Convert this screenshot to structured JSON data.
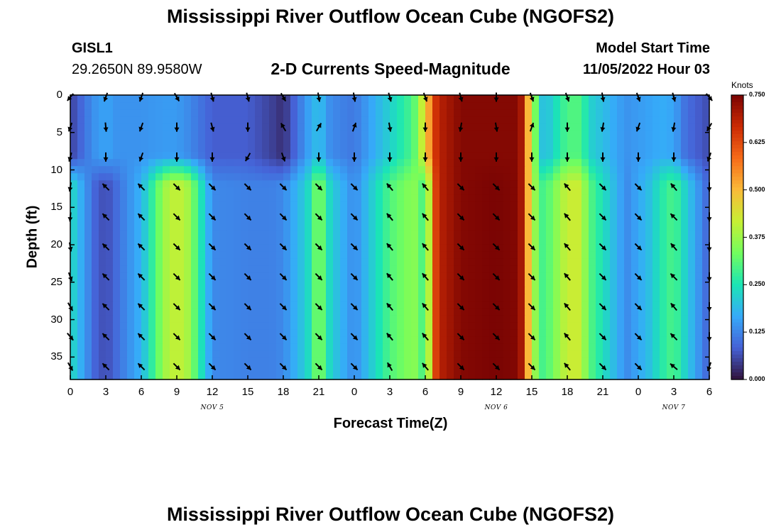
{
  "page": {
    "title_top": "Mississippi River Outflow Ocean Cube (NGOFS2)",
    "title_bottom": "Mississippi River Outflow Ocean Cube (NGOFS2)",
    "station_id": "GISL1",
    "station_coords": "29.2650N  89.9580W",
    "model_start_label": "Model Start Time",
    "model_start_value": "11/05/2022 Hour 03"
  },
  "chart_data": {
    "type": "heatmap",
    "title": "2-D Currents Speed-Magnitude",
    "xlabel": "Forecast Time(Z)",
    "ylabel": "Depth (ft)",
    "x_hours_range": [
      0,
      54
    ],
    "ylim": [
      0,
      38
    ],
    "y_reversed": true,
    "x_tick_hours": [
      0,
      3,
      6,
      9,
      12,
      15,
      18,
      21,
      24,
      27,
      30,
      33,
      36,
      39,
      42,
      45,
      48,
      51,
      54
    ],
    "x_tick_labels": [
      "0",
      "3",
      "6",
      "9",
      "12",
      "15",
      "18",
      "21",
      "0",
      "3",
      "6",
      "9",
      "12",
      "15",
      "18",
      "21",
      "0",
      "3",
      "6"
    ],
    "day_labels": [
      {
        "label": "NOV 5",
        "hour": 12
      },
      {
        "label": "NOV 6",
        "hour": 36
      },
      {
        "label": "NOV 7",
        "hour": 51
      }
    ],
    "y_ticks": [
      0,
      5,
      10,
      15,
      20,
      25,
      30,
      35
    ],
    "colorbar": {
      "unit": "Knots",
      "min": 0.0,
      "max": 0.75,
      "tick_values": [
        0.0,
        0.125,
        0.25,
        0.375,
        0.5,
        0.625,
        0.75
      ],
      "tick_labels": [
        "0.000",
        "0.125",
        "0.250",
        "0.375",
        "0.500",
        "0.625",
        "0.750"
      ],
      "colors": [
        "#30123b",
        "#4661d6",
        "#36aaf9",
        "#1be5b5",
        "#72fe5e",
        "#c7ef34",
        "#faba39",
        "#f66b19",
        "#cb2a04",
        "#7a0403"
      ]
    },
    "speed_profile": {
      "time_hours": [
        0,
        2,
        3,
        4,
        6,
        8,
        9,
        10,
        12,
        15,
        17,
        18,
        20,
        21,
        22,
        24,
        27,
        29,
        30,
        31,
        33,
        36,
        38,
        39,
        40,
        42,
        43,
        44,
        47,
        49,
        50,
        51,
        52,
        54
      ],
      "surface_kt": [
        0.05,
        0.14,
        0.16,
        0.14,
        0.14,
        0.15,
        0.15,
        0.13,
        0.08,
        0.08,
        0.05,
        0.03,
        0.15,
        0.2,
        0.13,
        0.11,
        0.22,
        0.3,
        0.46,
        0.68,
        0.74,
        0.74,
        0.74,
        0.4,
        0.18,
        0.3,
        0.3,
        0.22,
        0.14,
        0.16,
        0.17,
        0.16,
        0.1,
        0.06
      ],
      "deep_kt": [
        0.24,
        0.09,
        0.06,
        0.1,
        0.18,
        0.38,
        0.42,
        0.38,
        0.13,
        0.12,
        0.12,
        0.13,
        0.22,
        0.36,
        0.22,
        0.13,
        0.3,
        0.36,
        0.28,
        0.68,
        0.74,
        0.75,
        0.74,
        0.4,
        0.28,
        0.42,
        0.42,
        0.3,
        0.13,
        0.2,
        0.26,
        0.3,
        0.22,
        0.08
      ]
    },
    "vectors": {
      "time_hours": [
        0,
        3,
        6,
        9,
        12,
        15,
        18,
        21,
        24,
        27,
        30,
        33,
        36,
        39,
        42,
        45,
        48,
        51,
        54
      ],
      "depths_ft": [
        0,
        4,
        8,
        12,
        16,
        20,
        24,
        28,
        32,
        36
      ],
      "directions_deg": [
        [
          220,
          200,
          195,
          190,
          185,
          170,
          160,
          150,
          140,
          150
        ],
        [
          200,
          175,
          180,
          315,
          315,
          315,
          315,
          315,
          315,
          315
        ],
        [
          200,
          200,
          200,
          315,
          315,
          315,
          315,
          315,
          315,
          315
        ],
        [
          150,
          180,
          180,
          135,
          135,
          135,
          135,
          135,
          135,
          135
        ],
        [
          165,
          165,
          180,
          135,
          135,
          135,
          135,
          135,
          135,
          135
        ],
        [
          165,
          180,
          210,
          135,
          135,
          135,
          135,
          135,
          135,
          135
        ],
        [
          150,
          330,
          160,
          135,
          135,
          135,
          135,
          135,
          135,
          135
        ],
        [
          170,
          30,
          180,
          135,
          135,
          135,
          135,
          135,
          135,
          135
        ],
        [
          170,
          20,
          180,
          135,
          135,
          135,
          135,
          135,
          135,
          135
        ],
        [
          165,
          170,
          180,
          320,
          320,
          320,
          320,
          320,
          320,
          330
        ],
        [
          160,
          180,
          180,
          320,
          320,
          320,
          320,
          320,
          320,
          320
        ],
        [
          165,
          190,
          180,
          135,
          135,
          135,
          135,
          135,
          135,
          135
        ],
        [
          180,
          170,
          180,
          135,
          135,
          135,
          135,
          135,
          135,
          135
        ],
        [
          160,
          20,
          180,
          135,
          135,
          135,
          135,
          135,
          135,
          135
        ],
        [
          160,
          180,
          180,
          320,
          320,
          320,
          320,
          320,
          320,
          320
        ],
        [
          170,
          190,
          180,
          135,
          135,
          135,
          135,
          135,
          135,
          135
        ],
        [
          160,
          200,
          180,
          135,
          135,
          135,
          135,
          135,
          135,
          135
        ],
        [
          165,
          190,
          180,
          320,
          315,
          320,
          315,
          320,
          315,
          310
        ],
        [
          140,
          210,
          200,
          180,
          180,
          180,
          180,
          180,
          180,
          200
        ]
      ]
    }
  }
}
